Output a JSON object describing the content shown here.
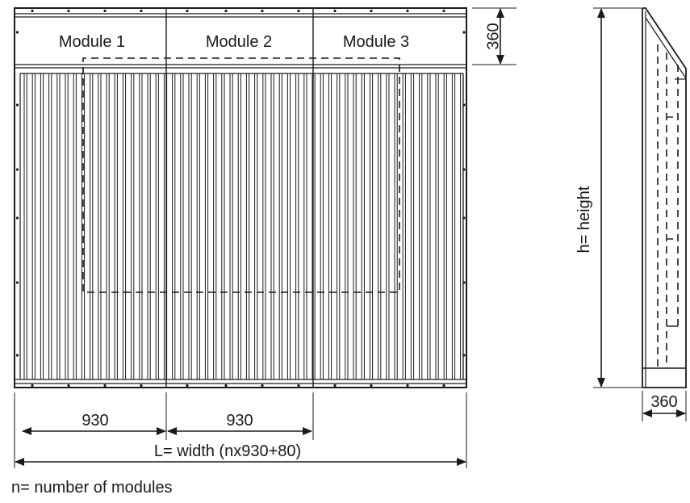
{
  "front_view": {
    "modules": [
      "Module 1",
      "Module 2",
      "Module 3"
    ],
    "header_height_label": "360",
    "module_width_label_1": "930",
    "module_width_label_2": "930",
    "total_width_label": "L= width (nx930+80)"
  },
  "side_view": {
    "height_label": "h= height",
    "depth_label": "360"
  },
  "footnote": "n= number of modules"
}
